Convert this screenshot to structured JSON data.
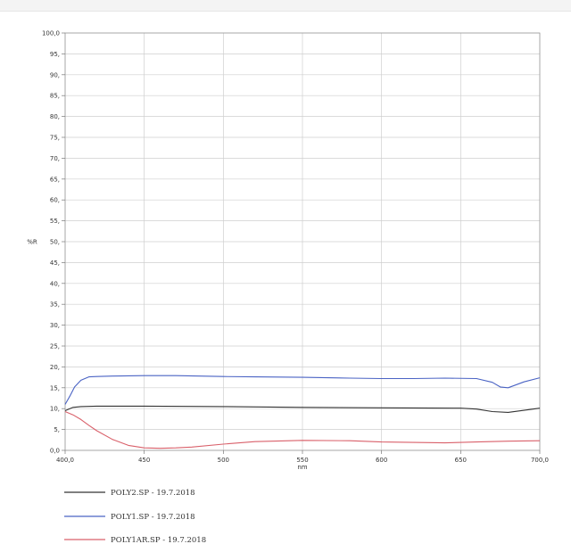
{
  "chart_data": {
    "type": "line",
    "xlabel": "nm",
    "ylabel": "%R",
    "xlim": [
      400,
      700
    ],
    "ylim": [
      0,
      100
    ],
    "x_ticks": [
      400,
      450,
      500,
      550,
      600,
      650,
      700
    ],
    "x_tick_labels": [
      "400,0",
      "450",
      "500",
      "550",
      "600",
      "650",
      "700,0"
    ],
    "y_ticks": [
      0,
      5,
      10,
      15,
      20,
      25,
      30,
      35,
      40,
      45,
      50,
      55,
      60,
      65,
      70,
      75,
      80,
      85,
      90,
      95,
      100
    ],
    "y_tick_labels": [
      "0,0",
      "5,",
      "10,",
      "15,",
      "20,",
      "25,",
      "30,",
      "35,",
      "40,",
      "45,",
      "50,",
      "55,",
      "60,",
      "65,",
      "70,",
      "75,",
      "80,",
      "85,",
      "90,",
      "95,",
      "100,0"
    ],
    "grid": true,
    "legend_position": "bottom-left",
    "series": [
      {
        "name": "POLY2.SP - 19.7.2018",
        "color": "#333333",
        "x": [
          400,
          405,
          410,
          420,
          450,
          500,
          550,
          600,
          650,
          660,
          670,
          680,
          690,
          700
        ],
        "y": [
          9.5,
          10.3,
          10.5,
          10.6,
          10.6,
          10.5,
          10.3,
          10.2,
          10.1,
          9.9,
          9.3,
          9.1,
          9.6,
          10.1
        ]
      },
      {
        "name": "POLY1.SP - 19.7.2018",
        "color": "#4a63c4",
        "x": [
          400,
          403,
          406,
          410,
          415,
          420,
          430,
          450,
          470,
          500,
          520,
          550,
          580,
          600,
          620,
          640,
          660,
          670,
          675,
          680,
          690,
          700
        ],
        "y": [
          11.0,
          13.0,
          15.2,
          16.8,
          17.6,
          17.7,
          17.8,
          17.9,
          17.9,
          17.7,
          17.6,
          17.5,
          17.3,
          17.2,
          17.2,
          17.3,
          17.2,
          16.3,
          15.2,
          15.0,
          16.4,
          17.4
        ]
      },
      {
        "name": "POLY1AR.SP - 19.7.2018",
        "color": "#d9606a",
        "x": [
          400,
          405,
          410,
          415,
          420,
          430,
          440,
          450,
          460,
          470,
          480,
          500,
          520,
          550,
          580,
          600,
          620,
          640,
          660,
          680,
          700
        ],
        "y": [
          9.3,
          8.5,
          7.4,
          6.0,
          4.7,
          2.6,
          1.2,
          0.6,
          0.5,
          0.6,
          0.8,
          1.5,
          2.1,
          2.4,
          2.3,
          2.0,
          1.9,
          1.8,
          2.0,
          2.2,
          2.3
        ]
      }
    ]
  }
}
